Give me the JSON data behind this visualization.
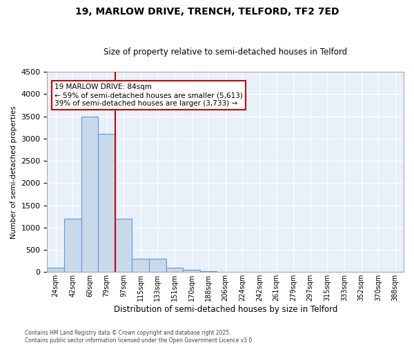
{
  "title": "19, MARLOW DRIVE, TRENCH, TELFORD, TF2 7ED",
  "subtitle": "Size of property relative to semi-detached houses in Telford",
  "xlabel": "Distribution of semi-detached houses by size in Telford",
  "ylabel": "Number of semi-detached properties",
  "categories": [
    "24sqm",
    "42sqm",
    "60sqm",
    "79sqm",
    "97sqm",
    "115sqm",
    "133sqm",
    "151sqm",
    "170sqm",
    "188sqm",
    "206sqm",
    "224sqm",
    "242sqm",
    "261sqm",
    "279sqm",
    "297sqm",
    "315sqm",
    "333sqm",
    "352sqm",
    "370sqm",
    "388sqm"
  ],
  "values": [
    100,
    1200,
    3500,
    3100,
    1200,
    300,
    300,
    100,
    50,
    25,
    10,
    3,
    1,
    0,
    0,
    0,
    0,
    0,
    0,
    0,
    0
  ],
  "bar_color": "#C8D9EC",
  "bar_edge_color": "#5B9BD5",
  "property_line_x": 3,
  "annotation_title": "19 MARLOW DRIVE: 84sqm",
  "annotation_line1": "← 59% of semi-detached houses are smaller (5,613)",
  "annotation_line2": "39% of semi-detached houses are larger (3,733) →",
  "annotation_box_color": "#CC0000",
  "ylim": [
    0,
    4500
  ],
  "yticks": [
    0,
    500,
    1000,
    1500,
    2000,
    2500,
    3000,
    3500,
    4000,
    4500
  ],
  "footer_line1": "Contains HM Land Registry data © Crown copyright and database right 2025.",
  "footer_line2": "Contains public sector information licensed under the Open Government Licence v3.0.",
  "bg_color": "#E8F0FA",
  "title_fontsize": 10,
  "subtitle_fontsize": 8.5
}
